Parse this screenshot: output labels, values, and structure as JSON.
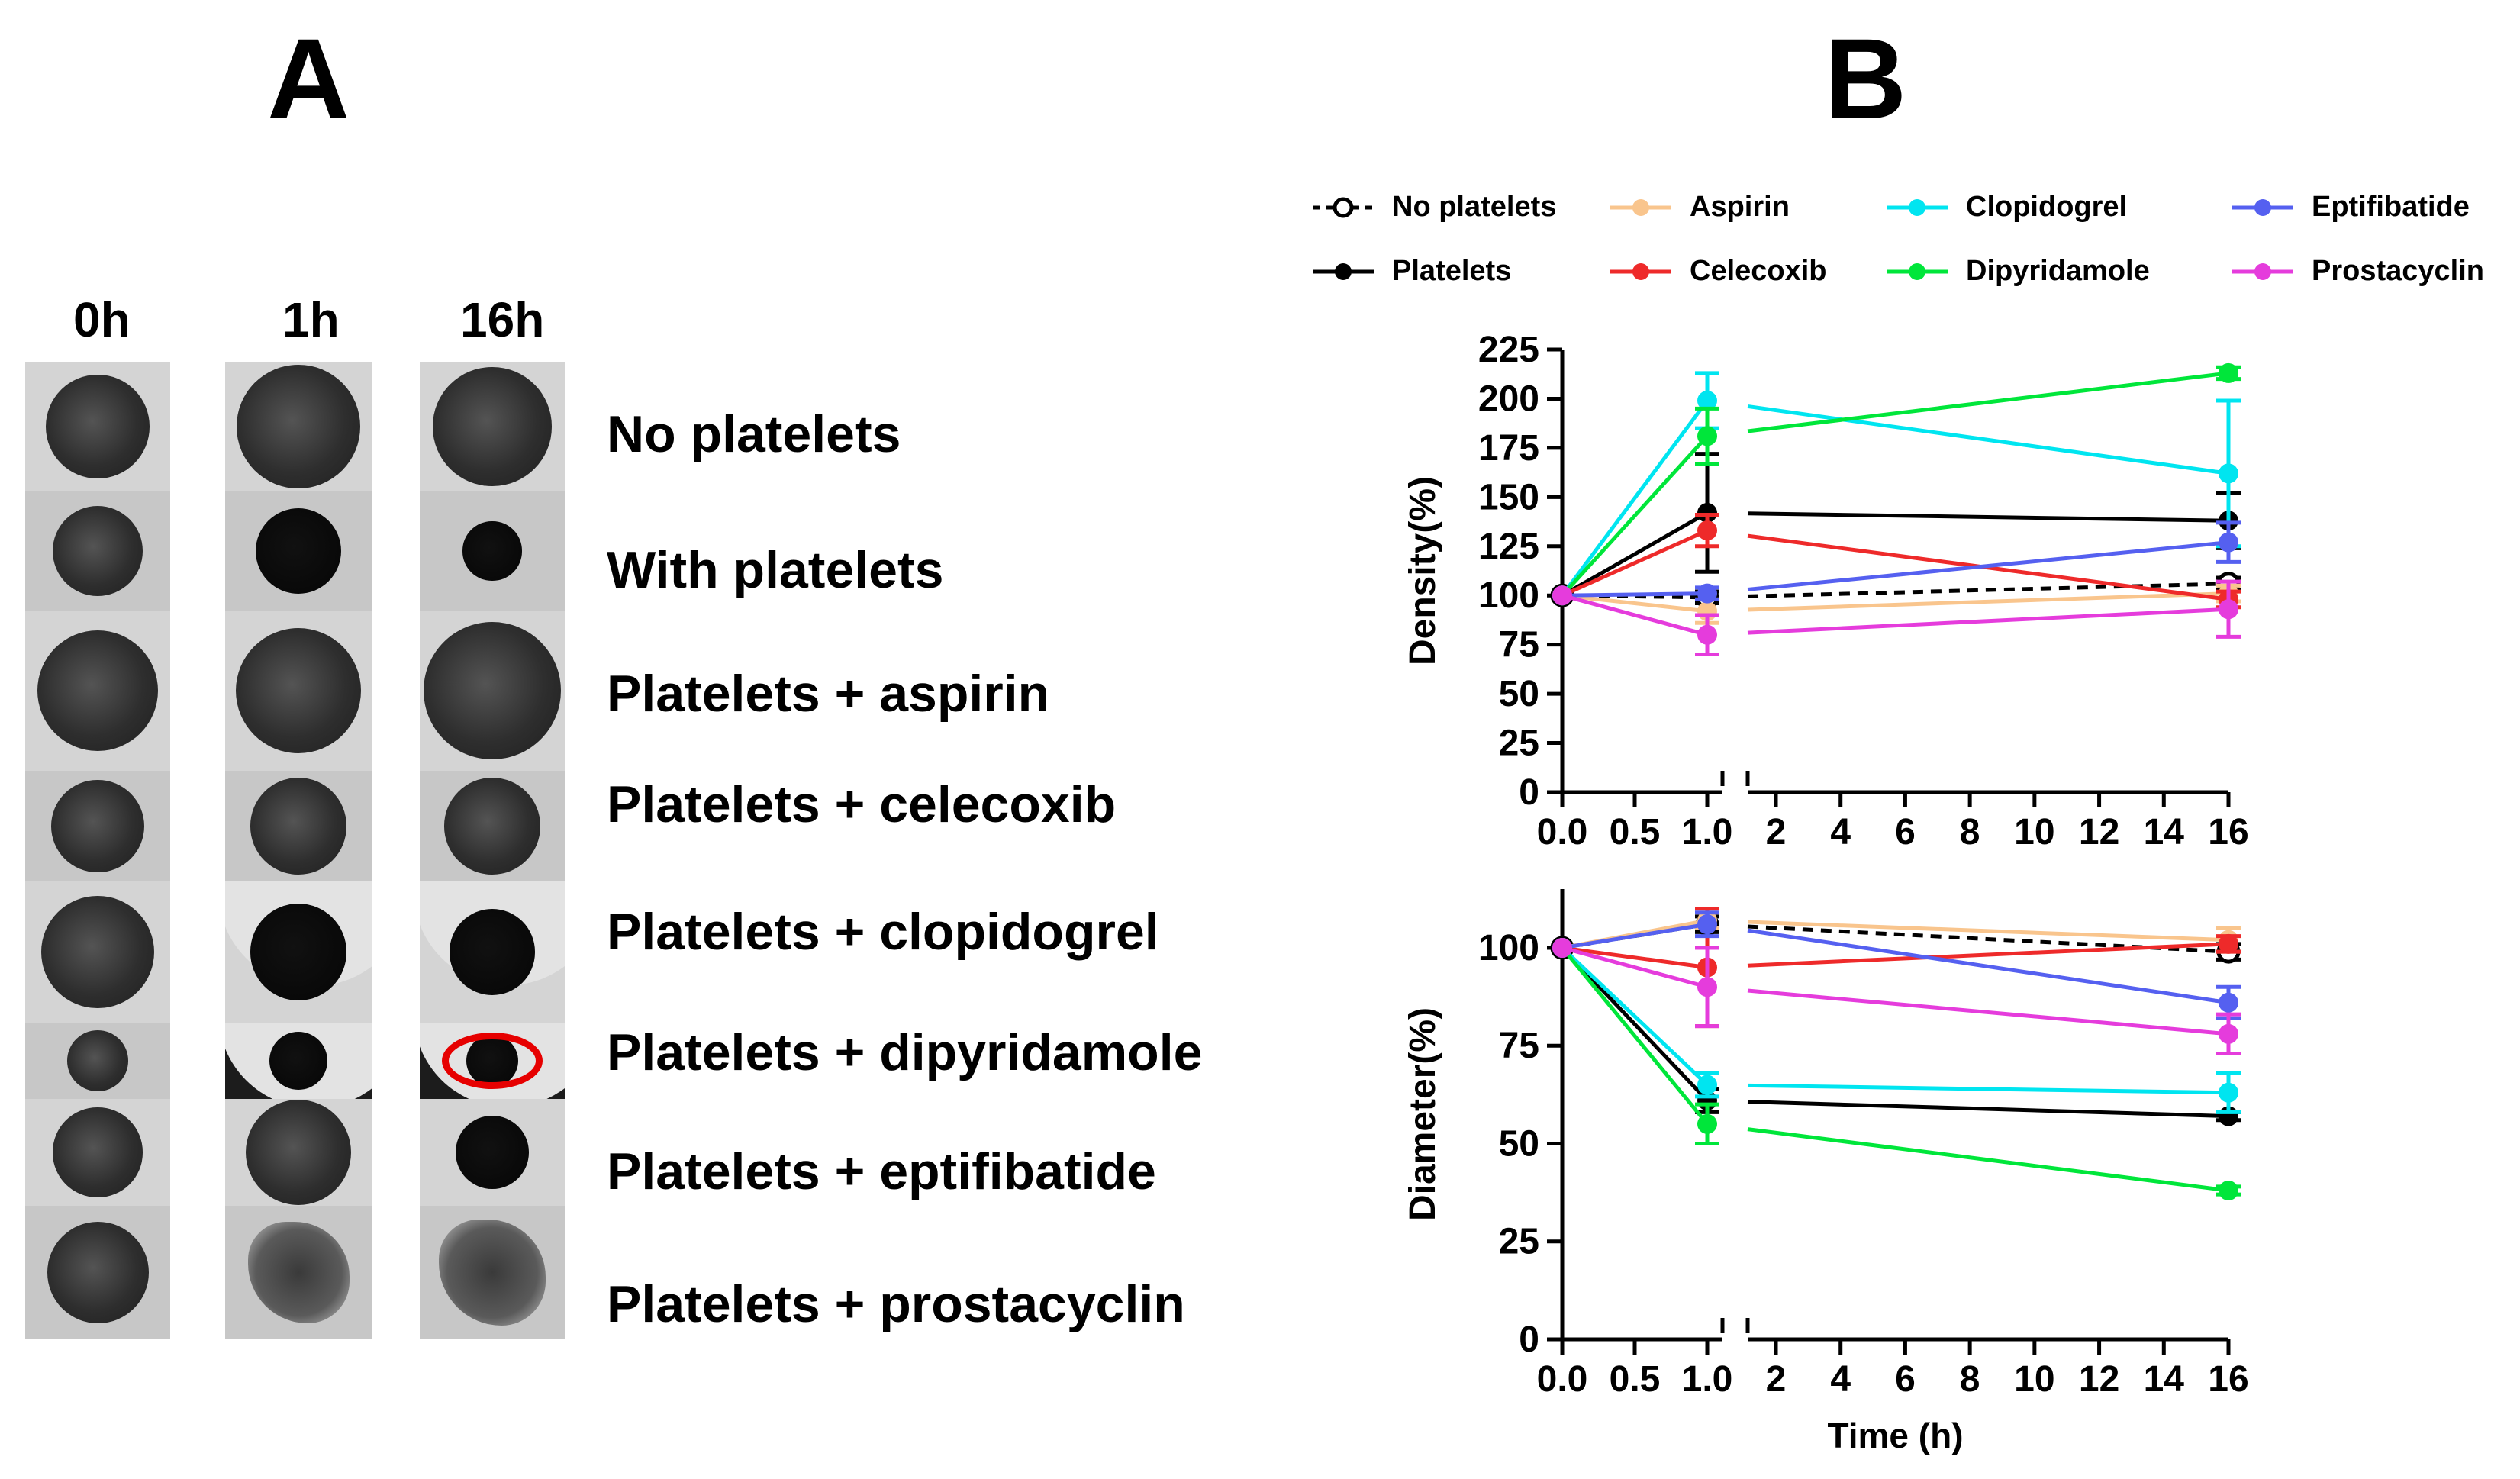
{
  "panel_a": {
    "letter": "A",
    "time_labels": [
      "0h",
      "1h",
      "16h"
    ],
    "row_labels": [
      "No platelets",
      "With platelets",
      "Platelets + aspirin",
      "Platelets + celecoxib",
      "Platelets + clopidogrel",
      "Platelets + dipyridamole",
      "Platelets + eptifibatide",
      "Platelets + prostacyclin"
    ]
  },
  "panel_b": {
    "letter": "B",
    "legend": [
      {
        "name": "No platelets",
        "color": "#000000",
        "style": "dashed-open"
      },
      {
        "name": "Aspirin",
        "color": "#f9c58d"
      },
      {
        "name": "Clopidogrel",
        "color": "#00e5f0"
      },
      {
        "name": "Eptifibatide",
        "color": "#5560f0"
      },
      {
        "name": "Platelets",
        "color": "#000000"
      },
      {
        "name": "Celecoxib",
        "color": "#ee2a2a"
      },
      {
        "name": "Dipyridamole",
        "color": "#00e63a"
      },
      {
        "name": "Prostacyclin",
        "color": "#e53cdc"
      }
    ]
  },
  "chart_data": [
    {
      "type": "line",
      "title": "",
      "xlabel": "",
      "ylabel": "Density(%)",
      "ylim": [
        0,
        225
      ],
      "yticks": [
        "0",
        "25",
        "50",
        "75",
        "100",
        "125",
        "150",
        "175",
        "200",
        "225"
      ],
      "x_segments": [
        {
          "range": [
            0,
            1
          ],
          "ticks": [
            "0.0",
            "0.5",
            "1.0"
          ]
        },
        {
          "range": [
            1.5,
            16
          ],
          "ticks": [
            "2",
            "4",
            "6",
            "8",
            "10",
            "12",
            "14",
            "16"
          ]
        }
      ],
      "x": [
        0,
        1,
        16
      ],
      "series": [
        {
          "name": "No platelets",
          "values": [
            100,
            99,
            106
          ],
          "error": [
            0,
            3,
            3
          ]
        },
        {
          "name": "Platelets",
          "values": [
            100,
            142,
            138
          ],
          "error": [
            0,
            30,
            14
          ]
        },
        {
          "name": "Aspirin",
          "values": [
            100,
            92,
            101
          ],
          "error": [
            0,
            6,
            4
          ]
        },
        {
          "name": "Celecoxib",
          "values": [
            100,
            133,
            98
          ],
          "error": [
            0,
            8,
            4
          ]
        },
        {
          "name": "Clopidogrel",
          "values": [
            100,
            199,
            162
          ],
          "error": [
            0,
            14,
            37
          ]
        },
        {
          "name": "Dipyridamole",
          "values": [
            100,
            181,
            213
          ],
          "error": [
            0,
            14,
            3
          ]
        },
        {
          "name": "Eptifibatide",
          "values": [
            100,
            101,
            127
          ],
          "error": [
            0,
            3,
            10
          ]
        },
        {
          "name": "Prostacyclin",
          "values": [
            100,
            80,
            93
          ],
          "error": [
            0,
            10,
            14
          ]
        }
      ]
    },
    {
      "type": "line",
      "title": "",
      "xlabel": "Time (h)",
      "ylabel": "Diameter(%)",
      "ylim": [
        0,
        115
      ],
      "yticks": [
        "0",
        "25",
        "50",
        "75",
        "100"
      ],
      "x_segments": [
        {
          "range": [
            0,
            1
          ],
          "ticks": [
            "0.0",
            "0.5",
            "1.0"
          ]
        },
        {
          "range": [
            1.5,
            16
          ],
          "ticks": [
            "2",
            "4",
            "6",
            "8",
            "10",
            "12",
            "14",
            "16"
          ]
        }
      ],
      "x": [
        0,
        1,
        16
      ],
      "series": [
        {
          "name": "No platelets",
          "values": [
            100,
            106,
            99
          ],
          "error": [
            0,
            2,
            2
          ]
        },
        {
          "name": "Platelets",
          "values": [
            100,
            61,
            57
          ],
          "error": [
            0,
            3,
            1
          ]
        },
        {
          "name": "Aspirin",
          "values": [
            100,
            107,
            102
          ],
          "error": [
            0,
            2,
            3
          ]
        },
        {
          "name": "Celecoxib",
          "values": [
            100,
            95,
            101
          ],
          "error": [
            0,
            15,
            2
          ]
        },
        {
          "name": "Clopidogrel",
          "values": [
            100,
            65,
            63
          ],
          "error": [
            0,
            3,
            5
          ]
        },
        {
          "name": "Dipyridamole",
          "values": [
            100,
            55,
            38
          ],
          "error": [
            0,
            5,
            1
          ]
        },
        {
          "name": "Eptifibatide",
          "values": [
            100,
            106,
            86
          ],
          "error": [
            0,
            3,
            4
          ]
        },
        {
          "name": "Prostacyclin",
          "values": [
            100,
            90,
            78
          ],
          "error": [
            0,
            10,
            5
          ]
        }
      ]
    }
  ]
}
